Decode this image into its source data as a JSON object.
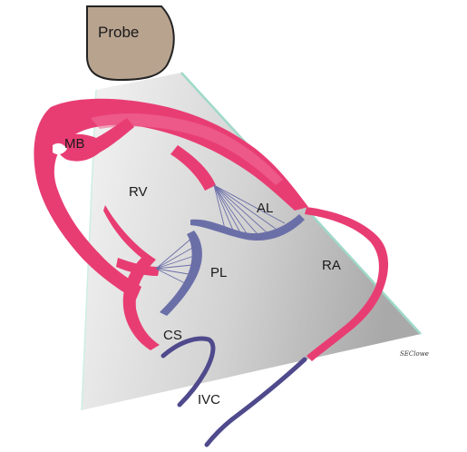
{
  "labels": {
    "probe": "Probe",
    "mb": "MB",
    "rv": "RV",
    "al": "AL",
    "pl": "PL",
    "ra": "RA",
    "cs": "CS",
    "ivc": "IVC"
  },
  "signature": "SEClowe",
  "colors": {
    "probe": "#b8a38f",
    "myocardium": "#e83d73",
    "myocardium_light": "#f06d98",
    "valve": "#6b6fa8",
    "ivc": "#4f4a8c",
    "beam_edge": "#9fd9c9",
    "outline": "#222222"
  }
}
